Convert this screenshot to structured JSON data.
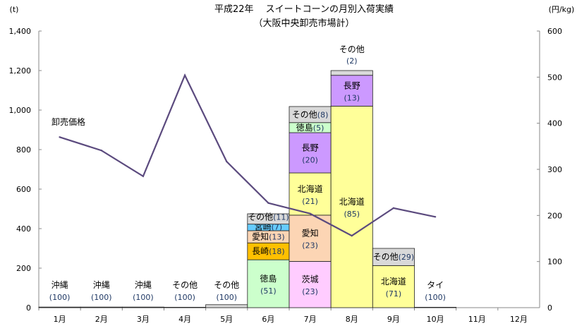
{
  "chart_data": {
    "type": "bar",
    "title": "平成22年　 スイートコーンの月別入荷実績",
    "subtitle": "（大阪中央卸売市場計）",
    "ylabel": "(t)",
    "y2label": "(円/kg)",
    "ylim": [
      0,
      1400
    ],
    "y2lim": [
      0,
      600
    ],
    "yticks": [
      "0",
      "200",
      "400",
      "600",
      "800",
      "1,000",
      "1,200",
      "1,400"
    ],
    "y2ticks": [
      "0",
      "100",
      "200",
      "300",
      "400",
      "500",
      "600"
    ],
    "categories": [
      "1月",
      "2月",
      "3月",
      "4月",
      "5月",
      "6月",
      "7月",
      "8月",
      "9月",
      "10月",
      "11月",
      "12月"
    ],
    "grid": false,
    "totals_t": [
      3,
      3,
      3,
      2,
      15,
      475,
      1018,
      1200,
      300,
      2,
      0,
      0
    ],
    "stacks": [
      [
        {
          "name": "沖縄",
          "share": "(100)",
          "pct": 100,
          "color": "#d9d9d9"
        }
      ],
      [
        {
          "name": "沖縄",
          "share": "(100)",
          "pct": 100,
          "color": "#d9d9d9"
        }
      ],
      [
        {
          "name": "沖縄",
          "share": "(100)",
          "pct": 100,
          "color": "#d9d9d9"
        }
      ],
      [
        {
          "name": "その他",
          "share": "(100)",
          "pct": 100,
          "color": "#d9d9d9"
        }
      ],
      [
        {
          "name": "その他",
          "share": "(100)",
          "pct": 100,
          "color": "#d9d9d9"
        }
      ],
      [
        {
          "name": "徳島",
          "share": "(51)",
          "pct": 51,
          "color": "#ccffcc"
        },
        {
          "name": "長崎",
          "share": "(18)",
          "pct": 18,
          "color": "#ffc000"
        },
        {
          "name": "愛知",
          "share": "(13)",
          "pct": 13,
          "color": "#fcd5b4"
        },
        {
          "name": "宮崎",
          "share": "(7)",
          "pct": 7,
          "color": "#66ccff"
        },
        {
          "name": "その他",
          "share": "(11)",
          "pct": 11,
          "color": "#d9d9d9"
        }
      ],
      [
        {
          "name": "茨城",
          "share": "(23)",
          "pct": 23,
          "color": "#ffccff"
        },
        {
          "name": "愛知",
          "share": "(23)",
          "pct": 23,
          "color": "#fcd5b4"
        },
        {
          "name": "北海道",
          "share": "(21)",
          "pct": 21,
          "color": "#ffff99"
        },
        {
          "name": "長野",
          "share": "(20)",
          "pct": 20,
          "color": "#cc99ff"
        },
        {
          "name": "徳島",
          "share": "(5)",
          "pct": 5,
          "color": "#ccffcc"
        },
        {
          "name": "その他",
          "share": "(8)",
          "pct": 8,
          "color": "#d9d9d9"
        }
      ],
      [
        {
          "name": "北海道",
          "share": "(85)",
          "pct": 85,
          "color": "#ffff99"
        },
        {
          "name": "長野",
          "share": "(13)",
          "pct": 13,
          "color": "#cc99ff"
        },
        {
          "name": "その他",
          "share": "(2)",
          "pct": 2,
          "color": "#d9d9d9"
        }
      ],
      [
        {
          "name": "北海道",
          "share": "(71)",
          "pct": 71,
          "color": "#ffff99"
        },
        {
          "name": "その他",
          "share": "(29)",
          "pct": 29,
          "color": "#d9d9d9"
        }
      ],
      [
        {
          "name": "タイ",
          "share": "(100)",
          "pct": 100,
          "color": "#d9d9d9"
        }
      ],
      [],
      []
    ],
    "price_series": {
      "name": "卸売価格",
      "axis": "right",
      "color": "#5b4a7e",
      "values": [
        370,
        341,
        285,
        504,
        317,
        227,
        204,
        156,
        216,
        197,
        null,
        null
      ]
    }
  }
}
